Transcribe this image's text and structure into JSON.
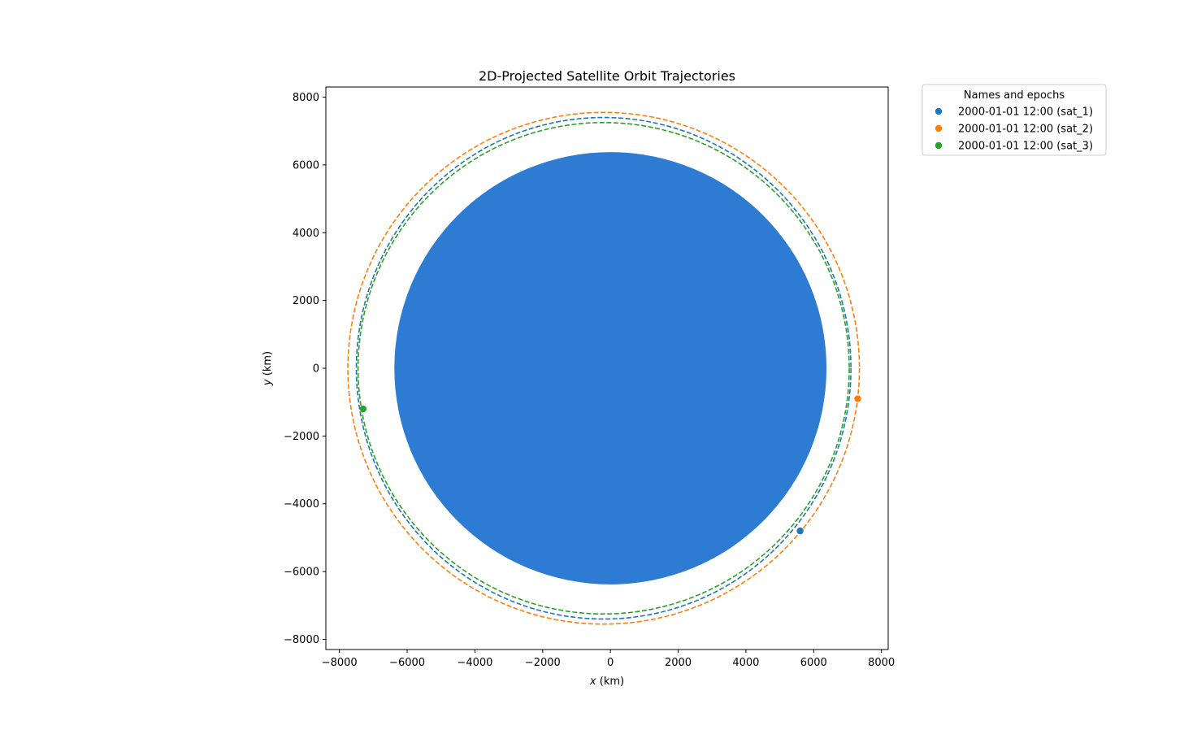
{
  "chart_data": {
    "type": "scatter",
    "title": "2D-Projected Satellite Orbit Trajectories",
    "xlabel": {
      "var": "x",
      "unit": " (km)"
    },
    "ylabel": {
      "var": "y",
      "unit": " (km)"
    },
    "xlim": [
      -8400,
      8200
    ],
    "ylim": [
      -8300,
      8300
    ],
    "xticks": [
      -8000,
      -6000,
      -4000,
      -2000,
      0,
      2000,
      4000,
      6000,
      8000
    ],
    "yticks": [
      -8000,
      -6000,
      -4000,
      -2000,
      0,
      2000,
      4000,
      6000,
      8000
    ],
    "grid": false,
    "earth": {
      "center": [
        0,
        0
      ],
      "radius": 6378,
      "color": "#2e7bd4"
    },
    "legend": {
      "title": "Names and epochs",
      "placement": "outside-top-right",
      "entries": [
        "2000-01-01 12:00 (sat_1)",
        "2000-01-01 12:00 (sat_2)",
        "2000-01-01 12:00 (sat_3)"
      ]
    },
    "series": [
      {
        "name": "2000-01-01 12:00 (sat_1)",
        "color": "#1f77b4",
        "orbit": {
          "center": [
            -200,
            0
          ],
          "rx": 7300,
          "ry": 7400
        },
        "position": [
          5600,
          -4800
        ]
      },
      {
        "name": "2000-01-01 12:00 (sat_2)",
        "color": "#ff7f0e",
        "orbit": {
          "center": [
            -200,
            0
          ],
          "rx": 7550,
          "ry": 7550
        },
        "position": [
          7300,
          -900
        ]
      },
      {
        "name": "2000-01-01 12:00 (sat_3)",
        "color": "#2ca02c",
        "orbit": {
          "center": [
            -200,
            0
          ],
          "rx": 7250,
          "ry": 7250
        },
        "position": [
          -7300,
          -1200
        ]
      }
    ]
  }
}
